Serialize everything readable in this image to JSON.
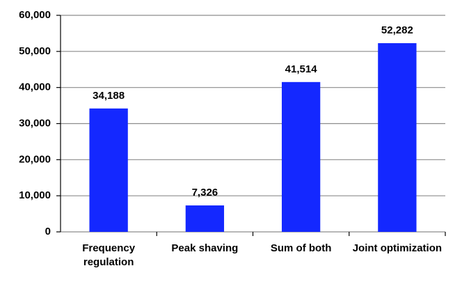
{
  "chart_data": {
    "type": "bar",
    "categories": [
      "Frequency regulation",
      "Peak shaving",
      "Sum of both",
      "Joint optimization"
    ],
    "values": [
      34188,
      7326,
      41514,
      52282
    ],
    "value_labels": [
      "34,188",
      "7,326",
      "41,514",
      "52,282"
    ],
    "color": "#1428ff",
    "ylim": [
      0,
      60000
    ],
    "yticks": [
      0,
      {
        "value": 10000,
        "label": "10,000"
      },
      {
        "value": 20000,
        "label": "20,000"
      },
      {
        "value": 30000,
        "label": "30,000"
      },
      {
        "value": 40000,
        "label": "40,000"
      },
      {
        "value": 50000,
        "label": "50,000"
      },
      {
        "value": 60000,
        "label": "60,000"
      }
    ],
    "grid": true
  }
}
